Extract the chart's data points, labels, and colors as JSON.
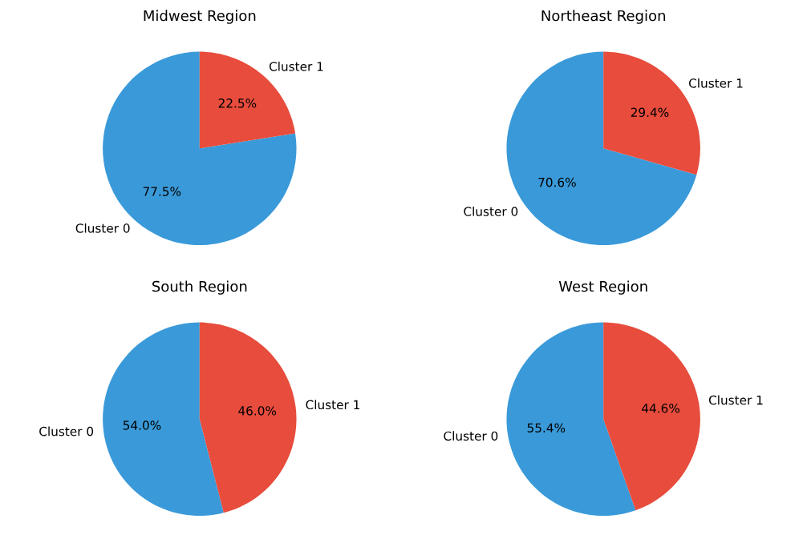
{
  "chart_data": [
    {
      "type": "pie",
      "title": "Midwest Region",
      "categories": [
        "Cluster 0",
        "Cluster 1"
      ],
      "values": [
        77.5,
        22.5
      ],
      "colors": [
        "#3a9ad9",
        "#e74c3c"
      ],
      "value_labels": [
        "77.5%",
        "22.5%"
      ]
    },
    {
      "type": "pie",
      "title": "Northeast Region",
      "categories": [
        "Cluster 0",
        "Cluster 1"
      ],
      "values": [
        70.6,
        29.4
      ],
      "colors": [
        "#3a9ad9",
        "#e74c3c"
      ],
      "value_labels": [
        "70.6%",
        "29.4%"
      ]
    },
    {
      "type": "pie",
      "title": "South Region",
      "categories": [
        "Cluster 0",
        "Cluster 1"
      ],
      "values": [
        54.0,
        46.0
      ],
      "colors": [
        "#3a9ad9",
        "#e74c3c"
      ],
      "value_labels": [
        "54.0%",
        "46.0%"
      ]
    },
    {
      "type": "pie",
      "title": "West Region",
      "categories": [
        "Cluster 0",
        "Cluster 1"
      ],
      "values": [
        55.4,
        44.6
      ],
      "colors": [
        "#3a9ad9",
        "#e74c3c"
      ],
      "value_labels": [
        "55.4%",
        "44.6%"
      ]
    }
  ]
}
